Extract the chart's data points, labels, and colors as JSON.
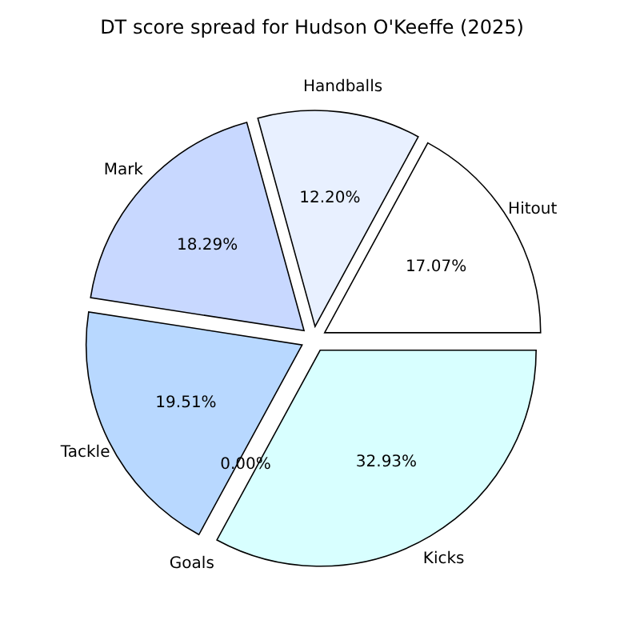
{
  "chart_data": {
    "type": "pie",
    "title": "DT score spread for Hudson O'Keeffe (2025)",
    "categories": [
      "Hitout",
      "Handballs",
      "Mark",
      "Tackle",
      "Goals",
      "Kicks"
    ],
    "values": [
      17.07,
      12.2,
      18.29,
      19.51,
      0.0,
      32.93
    ],
    "value_labels": [
      "17.07%",
      "12.20%",
      "18.29%",
      "19.51%",
      "0.00%",
      "32.93%"
    ],
    "colors": [
      "#ffffff",
      "#e8f0ff",
      "#c8d8ff",
      "#b8d8ff",
      "#c0e0ff",
      "#d8ffff"
    ],
    "legend": false
  }
}
